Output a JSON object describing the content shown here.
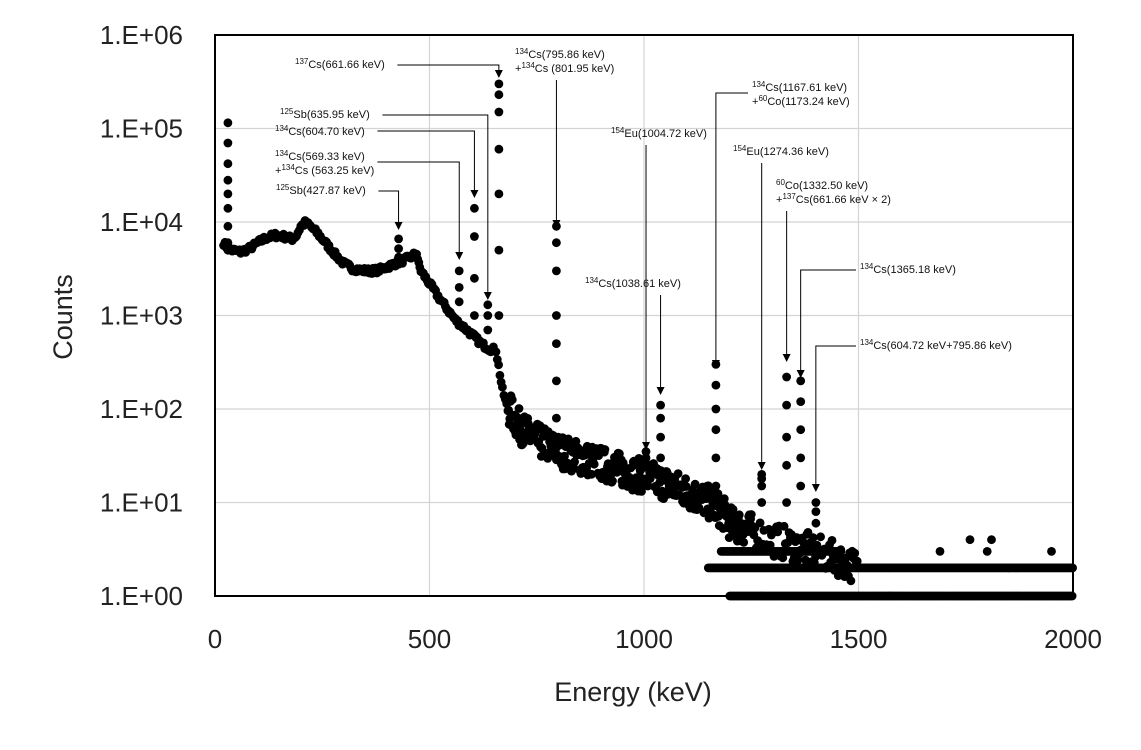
{
  "chart_data": {
    "type": "scatter",
    "title": "",
    "xlabel": "Energy (keV)",
    "ylabel": "Counts",
    "x_range": [
      0,
      2000
    ],
    "x_ticks": [
      0,
      500,
      1000,
      1500,
      2000
    ],
    "y_scale": "log",
    "y_range": [
      1,
      1000000
    ],
    "y_tick_values": [
      1,
      10,
      100,
      1000,
      10000,
      100000,
      1000000
    ],
    "y_tick_labels": [
      "1.E+00",
      "1.E+01",
      "1.E+02",
      "1.E+03",
      "1.E+04",
      "1.E+05",
      "1.E+06"
    ],
    "grid": true,
    "marker_color": "#000000",
    "continuum": [
      [
        20,
        6000
      ],
      [
        30,
        5200
      ],
      [
        40,
        5000
      ],
      [
        60,
        4800
      ],
      [
        80,
        5200
      ],
      [
        100,
        6000
      ],
      [
        120,
        6800
      ],
      [
        140,
        7200
      ],
      [
        160,
        7000
      ],
      [
        180,
        6600
      ],
      [
        190,
        7200
      ],
      [
        200,
        9000
      ],
      [
        210,
        9800
      ],
      [
        220,
        9200
      ],
      [
        240,
        7500
      ],
      [
        260,
        5800
      ],
      [
        280,
        4500
      ],
      [
        300,
        3600
      ],
      [
        320,
        3200
      ],
      [
        340,
        3050
      ],
      [
        360,
        3000
      ],
      [
        380,
        3050
      ],
      [
        400,
        3300
      ],
      [
        420,
        3600
      ],
      [
        440,
        3900
      ],
      [
        460,
        4300
      ],
      [
        470,
        4700
      ],
      [
        475,
        3500
      ],
      [
        480,
        3000
      ],
      [
        500,
        2200
      ],
      [
        520,
        1600
      ],
      [
        540,
        1200
      ],
      [
        560,
        900
      ],
      [
        580,
        750
      ],
      [
        600,
        620
      ],
      [
        620,
        500
      ],
      [
        640,
        440
      ],
      [
        655,
        430
      ],
      [
        670,
        160
      ],
      [
        680,
        110
      ],
      [
        700,
        75
      ],
      [
        720,
        58
      ],
      [
        750,
        46
      ],
      [
        780,
        40
      ],
      [
        800,
        36
      ],
      [
        850,
        30
      ],
      [
        900,
        26
      ],
      [
        950,
        22
      ],
      [
        1000,
        19
      ],
      [
        1050,
        16
      ],
      [
        1100,
        13
      ],
      [
        1150,
        10
      ],
      [
        1180,
        8
      ],
      [
        1200,
        6
      ],
      [
        1250,
        5
      ],
      [
        1300,
        4
      ],
      [
        1350,
        3.5
      ],
      [
        1400,
        3
      ],
      [
        1450,
        2.5
      ],
      [
        1500,
        2
      ]
    ],
    "peaks": [
      {
        "energy": 30,
        "counts": [
          6000,
          9000,
          14000,
          20000,
          28000,
          42000,
          70000,
          115000
        ]
      },
      {
        "energy": 427.87,
        "counts": [
          4200,
          5200,
          6600
        ]
      },
      {
        "energy": 569.33,
        "counts": [
          1400,
          2000,
          3000
        ]
      },
      {
        "energy": 604.7,
        "counts": [
          1000,
          2500,
          7000,
          14000
        ]
      },
      {
        "energy": 635.95,
        "counts": [
          700,
          1000,
          1300
        ]
      },
      {
        "energy": 661.66,
        "counts": [
          1000,
          5000,
          20000,
          60000,
          150000,
          230000,
          300000
        ]
      },
      {
        "energy": 795.86,
        "counts": [
          80,
          200,
          500,
          1000,
          3000,
          6000,
          9000
        ]
      },
      {
        "energy": 1004.72,
        "counts": [
          30,
          35
        ]
      },
      {
        "energy": 1038.61,
        "counts": [
          30,
          50,
          80,
          110
        ]
      },
      {
        "energy": 1167.61,
        "counts": [
          15,
          30,
          60,
          100,
          180,
          300
        ]
      },
      {
        "energy": 1274.36,
        "counts": [
          10,
          15,
          18,
          20
        ]
      },
      {
        "energy": 1332.5,
        "counts": [
          10,
          25,
          50,
          110,
          220
        ]
      },
      {
        "energy": 1365.18,
        "counts": [
          15,
          30,
          60,
          120,
          200
        ]
      },
      {
        "energy": 1400.59,
        "counts": [
          6,
          8,
          10
        ]
      }
    ],
    "sparse_points": [
      [
        1690,
        3
      ],
      [
        1760,
        4
      ],
      [
        1800,
        3
      ],
      [
        1810,
        4
      ],
      [
        1850,
        2
      ],
      [
        1950,
        3
      ]
    ],
    "bands": [
      {
        "counts": 1,
        "x_start": 1200,
        "x_end": 2000
      },
      {
        "counts": 2,
        "x_start": 1150,
        "x_end": 2000
      },
      {
        "counts": 3,
        "x_start": 1180,
        "x_end": 1460
      }
    ],
    "annotations": [
      {
        "sup": "137",
        "label": "Cs(661.66 keV)",
        "line2_sup": "",
        "line2": "",
        "peak_energy": 661.66
      },
      {
        "sup": "134",
        "label": "Cs(795.86 keV)",
        "line2_sup": "134",
        "line2": "Cs (801.95 keV)",
        "peak_energy": 795.86
      },
      {
        "sup": "125",
        "label": "Sb(635.95 keV)",
        "line2_sup": "",
        "line2": "",
        "peak_energy": 635.95
      },
      {
        "sup": "134",
        "label": "Cs(604.70 keV)",
        "line2_sup": "",
        "line2": "",
        "peak_energy": 604.7
      },
      {
        "sup": "134",
        "label": "Cs(569.33 keV)",
        "line2_sup": "134",
        "line2": "Cs (563.25 keV)",
        "peak_energy": 569.33
      },
      {
        "sup": "125",
        "label": "Sb(427.87 keV)",
        "line2_sup": "",
        "line2": "",
        "peak_energy": 427.87
      },
      {
        "sup": "134",
        "label": "Cs(1167.61 keV)",
        "line2_sup": "60",
        "line2": "Co(1173.24 keV)",
        "peak_energy": 1167.61
      },
      {
        "sup": "154",
        "label": "Eu(1004.72 keV)",
        "line2_sup": "",
        "line2": "",
        "peak_energy": 1004.72
      },
      {
        "sup": "154",
        "label": "Eu(1274.36 keV)",
        "line2_sup": "",
        "line2": "",
        "peak_energy": 1274.36
      },
      {
        "sup": "60",
        "label": "Co(1332.50 keV)",
        "line2_sup": "137",
        "line2": "Cs(661.66 keV × 2)",
        "peak_energy": 1332.5
      },
      {
        "sup": "134",
        "label": "Cs(1038.61 keV)",
        "line2_sup": "",
        "line2": "",
        "peak_energy": 1038.61
      },
      {
        "sup": "134",
        "label": "Cs(1365.18 keV)",
        "line2_sup": "",
        "line2": "",
        "peak_energy": 1365.18
      },
      {
        "sup": "134",
        "label": "Cs(604.72 keV+795.86 keV)",
        "line2_sup": "",
        "line2": "",
        "peak_energy": 1400.59
      }
    ]
  }
}
